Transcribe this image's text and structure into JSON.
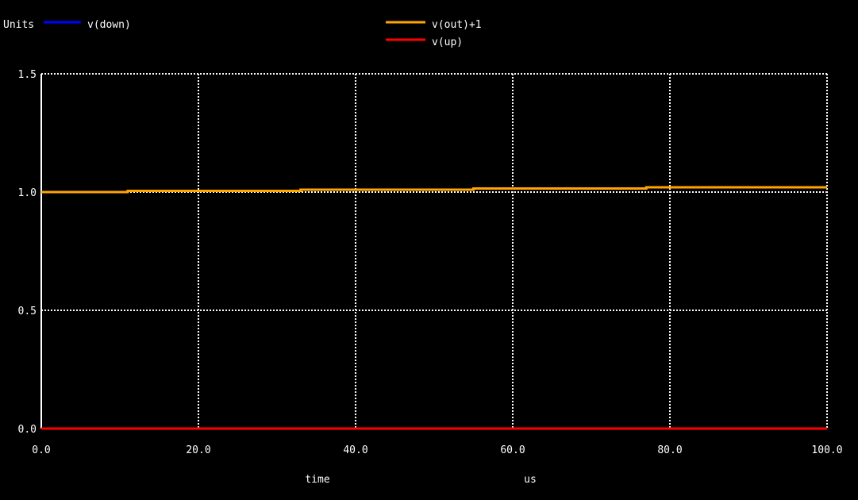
{
  "chart_data": {
    "type": "line",
    "ylabel": "Units",
    "xlabel": "time",
    "xunit": "us",
    "xlim": [
      0,
      100
    ],
    "ylim": [
      0,
      1.5
    ],
    "x_ticks": [
      "0.0",
      "20.0",
      "40.0",
      "60.0",
      "80.0",
      "100.0"
    ],
    "y_ticks": [
      "0.0",
      "0.5",
      "1.0",
      "1.5"
    ],
    "grid": true,
    "series": [
      {
        "name": "v(down)",
        "color": "#0000ff",
        "x": [
          0,
          100
        ],
        "y": [
          0,
          0
        ]
      },
      {
        "name": "v(out)+1",
        "color": "#ffa500",
        "x": [
          0,
          11,
          11,
          33,
          33,
          55,
          55,
          77,
          77,
          100
        ],
        "y": [
          1.0,
          1.0,
          1.005,
          1.005,
          1.01,
          1.01,
          1.015,
          1.015,
          1.02,
          1.02
        ]
      },
      {
        "name": "v(up)",
        "color": "#ff0000",
        "x": [
          0,
          100
        ],
        "y": [
          0,
          0
        ]
      }
    ]
  }
}
